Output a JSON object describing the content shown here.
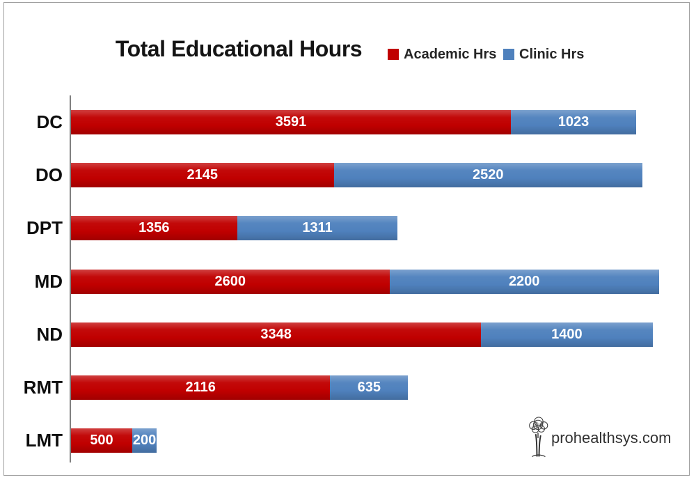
{
  "chart_data": {
    "type": "bar",
    "orientation": "horizontal",
    "stacked": true,
    "title": "Total Educational Hours",
    "categories": [
      "DC",
      "DO",
      "DPT",
      "MD",
      "ND",
      "RMT",
      "LMT"
    ],
    "series": [
      {
        "name": "Academic Hrs",
        "color": "#C00000",
        "values": [
          3591,
          2145,
          1356,
          2600,
          3348,
          2116,
          500
        ]
      },
      {
        "name": "Clinic Hrs",
        "color": "#4F81BD",
        "values": [
          1023,
          2520,
          1311,
          2200,
          1400,
          635,
          200
        ]
      }
    ],
    "xlim": [
      0,
      5000
    ],
    "grid": false,
    "legend_position": "top-right",
    "value_labels": {
      "position": "inside-center",
      "color": "#FFFFFF"
    },
    "axis_color": "#7F7F7F",
    "title_color": "#141414",
    "category_label_color": "#0D0D0D",
    "frame_border_color": "#9E9E9E",
    "background_color": "#FFFFFF"
  },
  "branding": {
    "logo_text": "prohealthsys.com",
    "logo_icon": "tree-icon",
    "logo_text_color": "#333333"
  }
}
